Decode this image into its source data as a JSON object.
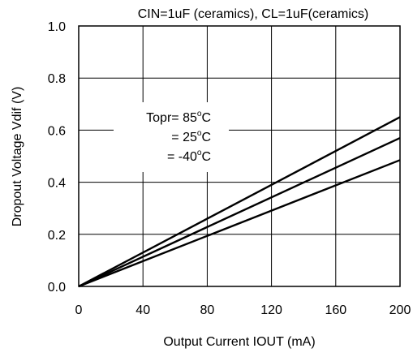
{
  "chart_data": {
    "type": "line",
    "title": "CIN=1uF (ceramics), CL=1uF(ceramics)",
    "xlabel": "Output Current IOUT (mA)",
    "ylabel": "Dropout Voltage Vdif (V)",
    "xlim": [
      0,
      200
    ],
    "ylim": [
      0,
      1.0
    ],
    "xticks": [
      0,
      40,
      80,
      120,
      160,
      200
    ],
    "yticks": [
      0.0,
      0.2,
      0.4,
      0.6,
      0.8,
      1.0
    ],
    "xtick_labels": [
      "0",
      "40",
      "80",
      "120",
      "160",
      "200"
    ],
    "ytick_labels": [
      "0.0",
      "0.2",
      "0.4",
      "0.6",
      "0.8",
      "1.0"
    ],
    "grid": true,
    "annotations": {
      "t1": "Topr= 85",
      "t2": "= 25",
      "t3": "= -40",
      "deg": "o",
      "unit": "C"
    },
    "series": [
      {
        "x": [
          0,
          200
        ],
        "y": [
          0,
          0.65
        ]
      },
      {
        "x": [
          0,
          200
        ],
        "y": [
          0,
          0.57
        ]
      },
      {
        "x": [
          0,
          200
        ],
        "y": [
          0,
          0.485
        ]
      }
    ]
  }
}
